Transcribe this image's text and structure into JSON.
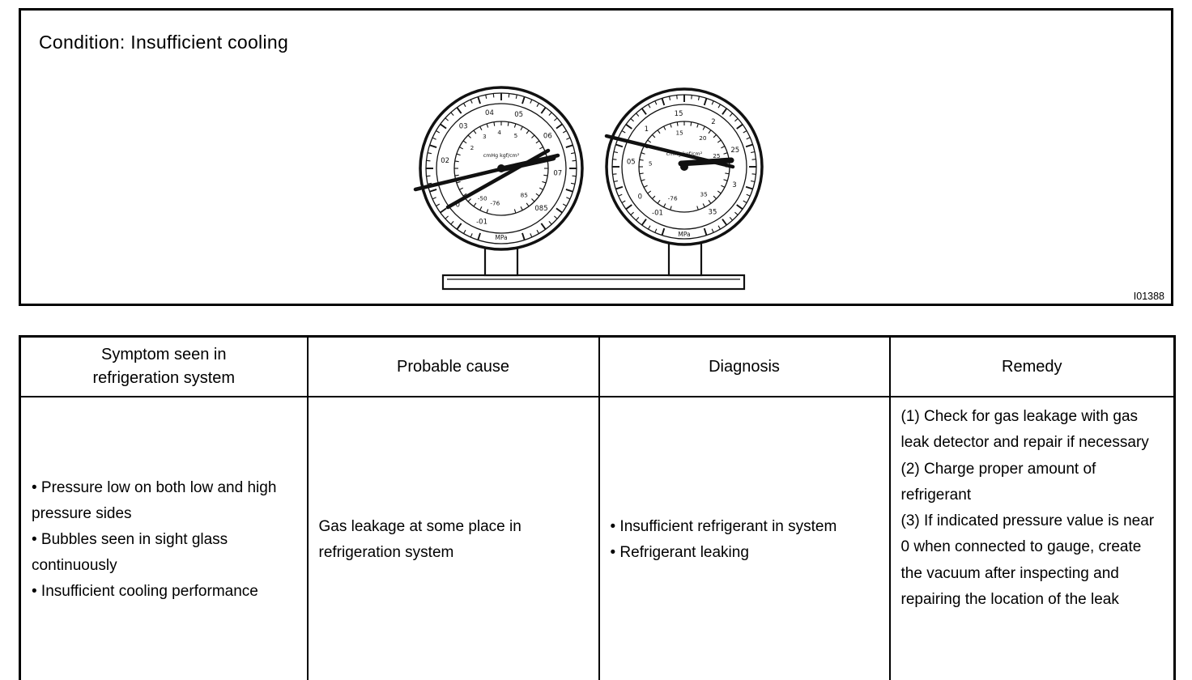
{
  "condition_box": {
    "title": "Condition: Insufficient cooling",
    "figure_id": "I01388"
  },
  "gauges": {
    "left": {
      "center_label": "cmHg kgf/cm²",
      "unit": "MPa",
      "outer_labels": [
        "-01",
        "0",
        "02",
        "03",
        "04",
        "05",
        "06",
        "07",
        "085"
      ],
      "inner_labels": [
        "-76",
        "-50",
        "2",
        "3",
        "4",
        "5",
        "7",
        "85"
      ]
    },
    "right": {
      "center_label": "cmHg kgf/cm²",
      "unit": "MPa",
      "outer_labels": [
        "-01",
        "0",
        "05",
        "1",
        "15",
        "2",
        "25",
        "3",
        "35"
      ],
      "inner_labels": [
        "-76",
        "5",
        "15",
        "20",
        "25",
        "35"
      ]
    }
  },
  "table": {
    "headers": [
      "Symptom seen in refrigeration system",
      "Probable cause",
      "Diagnosis",
      "Remedy"
    ],
    "rows": [
      {
        "symptom": [
          "• Pressure low on both low and high pressure sides",
          "• Bubbles seen in sight glass continuously",
          "• Insufficient cooling performance"
        ],
        "cause": "Gas leakage at some place in refrigeration system",
        "diagnosis": [
          "•  Insufficient refrigerant in system",
          "• Refrigerant leaking"
        ],
        "remedy": [
          "(1) Check for gas leakage with gas leak detector and repair if necessary",
          "(2) Charge proper amount of refrigerant",
          "(3) If indicated pressure value is near 0 when connected to gauge, create the vacuum after inspecting and repairing the location of the leak"
        ]
      }
    ]
  }
}
